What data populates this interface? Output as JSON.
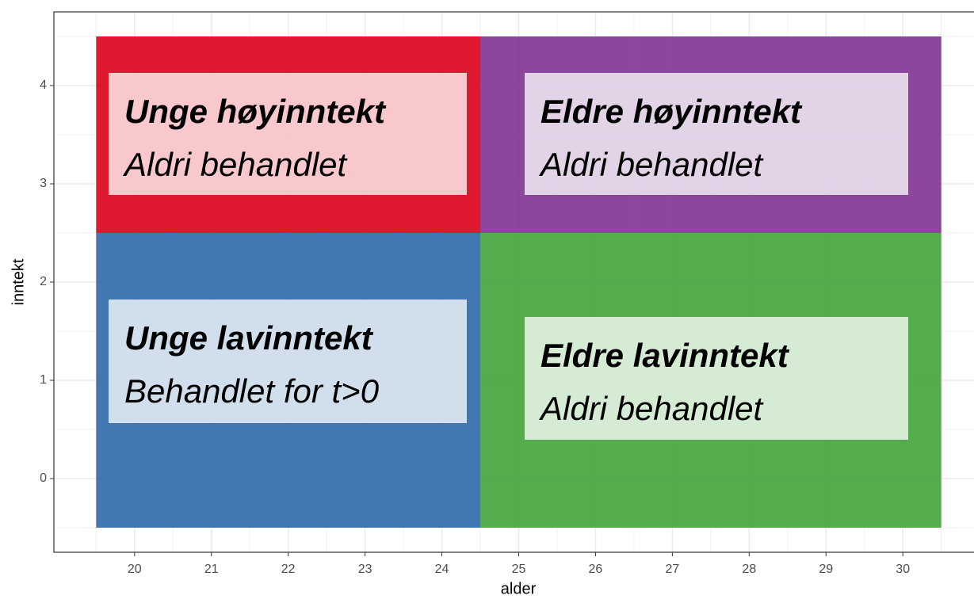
{
  "chart_data": {
    "type": "tile",
    "xlabel": "alder",
    "ylabel": "inntekt",
    "xlim": [
      18.95,
      31.05
    ],
    "ylim": [
      -0.75,
      4.75
    ],
    "xticks": [
      20,
      21,
      22,
      23,
      24,
      25,
      26,
      27,
      28,
      29,
      30
    ],
    "yticks": [
      0,
      1,
      2,
      3,
      4
    ],
    "grid": true,
    "tiles": [
      {
        "xmin": 19.5,
        "xmax": 24.5,
        "ymin": 2.5,
        "ymax": 4.5,
        "color": "#dc0018",
        "title": "Unge høyinntekt",
        "subtitle": "Aldri behandlet"
      },
      {
        "xmin": 24.5,
        "xmax": 30.5,
        "ymin": 2.5,
        "ymax": 4.5,
        "color": "#7e3390",
        "title": "Eldre høyinntekt",
        "subtitle": "Aldri behandlet"
      },
      {
        "xmin": 19.5,
        "xmax": 24.5,
        "ymin": -0.5,
        "ymax": 2.5,
        "color": "#2d69a8",
        "title": "Unge lavinntekt",
        "subtitle": "Behandlet for t>0"
      },
      {
        "xmin": 24.5,
        "xmax": 30.5,
        "ymin": -0.5,
        "ymax": 2.5,
        "color": "#41a33a",
        "title": "Eldre lavinntekt",
        "subtitle": "Aldri behandlet"
      }
    ]
  }
}
